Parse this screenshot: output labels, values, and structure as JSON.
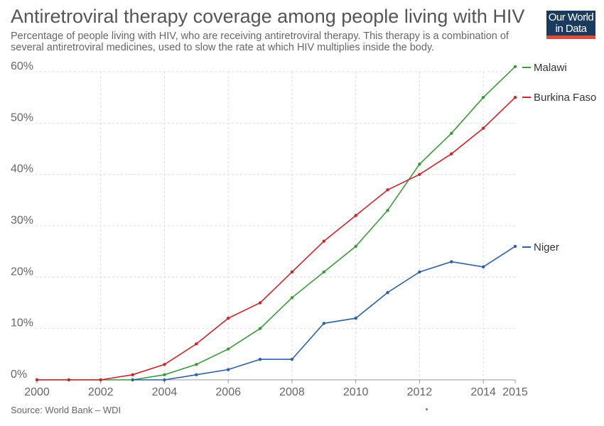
{
  "header": {
    "title": "Antiretroviral therapy coverage among people living with HIV",
    "subtitle": "Percentage of people living with HIV, who are receiving antiretroviral therapy. This therapy is a combination of several antiretroviral medicines, used to slow the rate at which HIV multiplies inside the body.",
    "logo_line1": "Our World",
    "logo_line2": "in Data"
  },
  "footer": {
    "source": "Source: World Bank – WDI"
  },
  "colors": {
    "Malawi": "#3a9a3a",
    "Burkina Faso": "#c8252c",
    "Niger": "#2e5fa3",
    "grid": "#dddddd",
    "logo_bg": "#1a3b5d",
    "logo_accent": "#e24a39"
  },
  "chart_data": {
    "type": "line",
    "title": "Antiretroviral therapy coverage among people living with HIV",
    "xlabel": "",
    "ylabel": "",
    "xlim": [
      2000,
      2015
    ],
    "ylim": [
      0,
      60
    ],
    "x_ticks": [
      2000,
      2002,
      2004,
      2006,
      2008,
      2010,
      2012,
      2014,
      2015
    ],
    "y_ticks": [
      0,
      10,
      20,
      30,
      40,
      50,
      60
    ],
    "y_tick_labels": [
      "0%",
      "10%",
      "20%",
      "30%",
      "40%",
      "50%",
      "60%"
    ],
    "grid": true,
    "legend": "right (labels at line ends)",
    "series": [
      {
        "name": "Malawi",
        "x": [
          2000,
          2001,
          2002,
          2003,
          2004,
          2005,
          2006,
          2007,
          2008,
          2009,
          2010,
          2011,
          2012,
          2013,
          2014,
          2015
        ],
        "values": [
          0,
          0,
          0,
          0,
          1,
          3,
          6,
          10,
          16,
          21,
          26,
          33,
          42,
          48,
          55,
          61
        ]
      },
      {
        "name": "Burkina Faso",
        "x": [
          2000,
          2001,
          2002,
          2003,
          2004,
          2005,
          2006,
          2007,
          2008,
          2009,
          2010,
          2011,
          2012,
          2013,
          2014,
          2015
        ],
        "values": [
          0,
          0,
          0,
          1,
          3,
          7,
          12,
          15,
          21,
          27,
          32,
          37,
          40,
          44,
          49,
          55
        ]
      },
      {
        "name": "Niger",
        "x": [
          2003,
          2004,
          2005,
          2006,
          2007,
          2008,
          2009,
          2010,
          2011,
          2012,
          2013,
          2014,
          2015
        ],
        "values": [
          0,
          0,
          1,
          2,
          4,
          4,
          11,
          12,
          17,
          21,
          23,
          22,
          26
        ]
      }
    ]
  }
}
